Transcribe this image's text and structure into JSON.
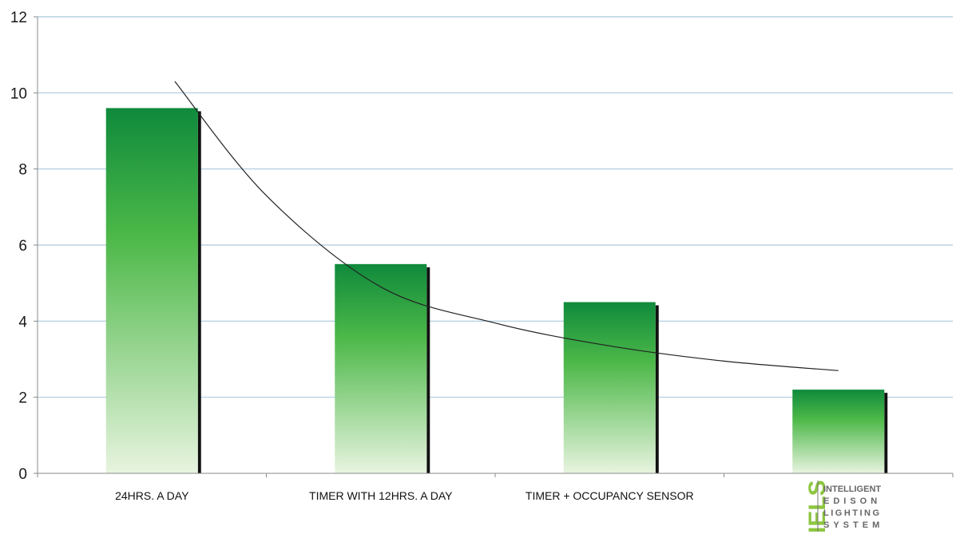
{
  "chart_data": {
    "type": "bar",
    "categories": [
      "24HRS. A DAY",
      "TIMER WITH 12HRS. A DAY",
      "TIMER + OCCUPANCY SENSOR",
      ""
    ],
    "values": [
      9.6,
      5.5,
      4.5,
      2.2
    ],
    "title": "",
    "xlabel": "",
    "ylabel": "",
    "ylim": [
      0,
      12
    ],
    "yticks": [
      0,
      2,
      4,
      6,
      8,
      10,
      12
    ],
    "grid": true,
    "legend": "none",
    "trendline": {
      "type": "curve",
      "x": [
        0.1,
        0.5,
        1.0,
        1.5,
        2.0,
        2.5,
        3.0
      ],
      "y": [
        10.3,
        7.3,
        4.9,
        3.95,
        3.35,
        2.95,
        2.7
      ]
    },
    "colors": {
      "bar_top": "#0f8a3c",
      "bar_mid": "#4cb848",
      "bar_bottom": "#e8f4e0",
      "bar_shadow": "#111111",
      "grid": "#a9c8de",
      "axis": "#888888",
      "trend": "#222222",
      "logo_accent": "#8dc63f"
    }
  },
  "logo": {
    "mark": "IELS",
    "lines": [
      "INTELLIGENT",
      "EDISON",
      "LIGHTING",
      "SYSTEM"
    ]
  }
}
